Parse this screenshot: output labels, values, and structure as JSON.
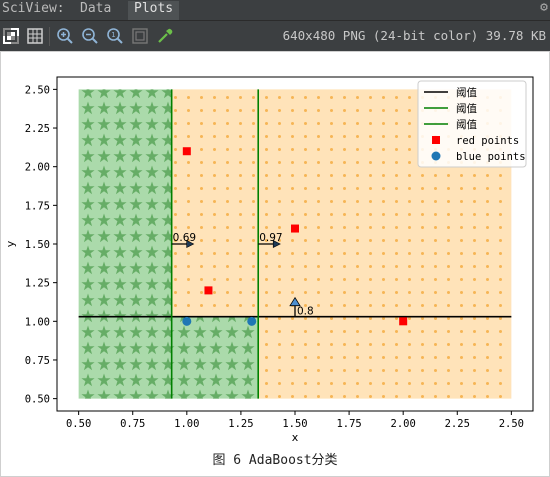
{
  "window": {
    "app_label": "SciView:",
    "tabs": [
      {
        "label": "Data"
      },
      {
        "label": "Plots"
      }
    ],
    "active_tab": "Plots"
  },
  "toolbar": {
    "icons": [
      "checker-icon",
      "grid-icon",
      "zoom-in-icon",
      "zoom-out-icon",
      "actual-size-icon",
      "fit-icon",
      "color-picker-icon"
    ],
    "image_info": "640x480 PNG (24-bit color) 39.78 KB"
  },
  "figure": {
    "caption": "图 6 AdaBoost分类"
  },
  "chart_data": {
    "type": "scatter",
    "xlabel": "x",
    "ylabel": "y",
    "xlim": [
      0.4,
      2.6
    ],
    "ylim": [
      0.42,
      2.58
    ],
    "xticks": [
      "0.50",
      "0.75",
      "1.00",
      "1.25",
      "1.50",
      "1.75",
      "2.00",
      "2.25",
      "2.50"
    ],
    "yticks": [
      "0.50",
      "0.75",
      "1.00",
      "1.25",
      "1.50",
      "1.75",
      "2.00",
      "2.25",
      "2.50"
    ],
    "regions": [
      {
        "x": [
          0.5,
          0.93
        ],
        "y": [
          0.5,
          2.5
        ],
        "color": "#66bb66",
        "hatch": "stars"
      },
      {
        "x": [
          0.93,
          1.33
        ],
        "y": [
          0.5,
          1.03
        ],
        "color": "#66bb66",
        "hatch": "stars"
      },
      {
        "x": [
          0.93,
          2.5
        ],
        "y": [
          1.03,
          2.5
        ],
        "color": "#ffcc80",
        "hatch": "dots"
      },
      {
        "x": [
          1.33,
          2.5
        ],
        "y": [
          0.5,
          1.03
        ],
        "color": "#ffcc80",
        "hatch": "dots"
      }
    ],
    "thresholds": [
      {
        "kind": "horizontal",
        "value": 1.03,
        "x_range": [
          0.5,
          2.5
        ],
        "color": "#000000"
      },
      {
        "kind": "vertical",
        "value": 0.93,
        "y_range": [
          0.5,
          2.5
        ],
        "color": "#008000"
      },
      {
        "kind": "vertical",
        "value": 1.33,
        "y_range": [
          0.5,
          2.5
        ],
        "color": "#008000"
      }
    ],
    "series": [
      {
        "name": "red points",
        "marker": "square",
        "color": "#ff0000",
        "points": [
          [
            1.0,
            2.1
          ],
          [
            1.5,
            1.6
          ],
          [
            1.1,
            1.2
          ],
          [
            2.0,
            1.0
          ]
        ]
      },
      {
        "name": "blue points",
        "marker": "circle",
        "color": "#1f77b4",
        "points": [
          [
            1.0,
            1.0
          ],
          [
            1.3,
            1.0
          ]
        ]
      }
    ],
    "annotations": [
      {
        "text": "0.69",
        "x": 0.93,
        "y": 1.5,
        "arrow": "right"
      },
      {
        "text": "0.97",
        "x": 1.33,
        "y": 1.5,
        "arrow": "right"
      },
      {
        "text": "0.8",
        "x": 1.5,
        "y": 1.03,
        "arrow": "up"
      }
    ],
    "legend": {
      "placement": "top-right",
      "entries": [
        {
          "label": "阈值",
          "kind": "line",
          "color": "#000000"
        },
        {
          "label": "阈值",
          "kind": "line",
          "color": "#008000"
        },
        {
          "label": "阈值",
          "kind": "line",
          "color": "#008000"
        },
        {
          "label": "red points",
          "kind": "square",
          "color": "#ff0000"
        },
        {
          "label": "blue points",
          "kind": "circle",
          "color": "#1f77b4"
        }
      ]
    }
  }
}
